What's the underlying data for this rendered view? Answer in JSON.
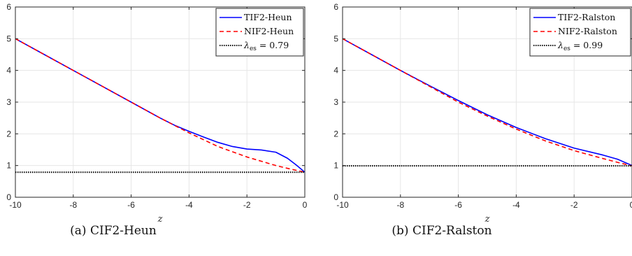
{
  "chart_data": [
    {
      "type": "line",
      "caption": "(a)  CIF2-Heun",
      "xlabel": "z",
      "ylabel": "",
      "xlim": [
        -10,
        0
      ],
      "ylim": [
        0,
        6
      ],
      "x_ticks": [
        -10,
        -8,
        -6,
        -4,
        -2,
        0
      ],
      "x_tick_labels": [
        "-10",
        "-8",
        "-6",
        "-4",
        "-2",
        "0"
      ],
      "y_ticks": [
        0,
        1,
        2,
        3,
        4,
        5,
        6
      ],
      "y_tick_labels": [
        "0",
        "1",
        "2",
        "3",
        "4",
        "5",
        "6"
      ],
      "grid": true,
      "legend_position": "top-right",
      "series": [
        {
          "name": "TIF2-Heun",
          "style": "solid",
          "color": "#0000ff",
          "x": [
            -10,
            -9,
            -8,
            -7,
            -6,
            -5,
            -4.5,
            -4,
            -3.5,
            -3,
            -2.5,
            -2,
            -1.5,
            -1,
            -0.6,
            -0.3,
            0
          ],
          "y": [
            5,
            4.5,
            4,
            3.5,
            3,
            2.5,
            2.27,
            2.08,
            1.9,
            1.73,
            1.6,
            1.52,
            1.49,
            1.42,
            1.23,
            1.02,
            0.79
          ]
        },
        {
          "name": "NIF2-Heun",
          "style": "dashed",
          "color": "#ff0000",
          "x": [
            -10,
            -9,
            -8,
            -7,
            -6,
            -5,
            -4,
            -3,
            -2,
            -1,
            -0.5,
            0
          ],
          "y": [
            5,
            4.5,
            4,
            3.5,
            3,
            2.5,
            2.03,
            1.6,
            1.27,
            1.0,
            0.89,
            0.79
          ]
        },
        {
          "name": "λes = 0.79",
          "style": "dotted",
          "color": "#000000",
          "x": [
            -10,
            0
          ],
          "y": [
            0.79,
            0.79
          ]
        }
      ],
      "legend_labels": [
        "TIF2-Heun",
        "NIF2-Heun",
        "= 0.79"
      ]
    },
    {
      "type": "line",
      "caption": "(b)  CIF2-Ralston",
      "xlabel": "z",
      "ylabel": "",
      "xlim": [
        -10,
        0
      ],
      "ylim": [
        0,
        6
      ],
      "x_ticks": [
        -10,
        -8,
        -6,
        -4,
        -2,
        0
      ],
      "x_tick_labels": [
        "-10",
        "-8",
        "-6",
        "-4",
        "-2",
        "0"
      ],
      "y_ticks": [
        0,
        1,
        2,
        3,
        4,
        5,
        6
      ],
      "y_tick_labels": [
        "0",
        "1",
        "2",
        "3",
        "4",
        "5",
        "6"
      ],
      "grid": true,
      "legend_position": "top-right",
      "series": [
        {
          "name": "TIF2-Ralston",
          "style": "solid",
          "color": "#0000ff",
          "x": [
            -10,
            -9,
            -8,
            -7,
            -6,
            -5,
            -4,
            -3,
            -2,
            -1,
            -0.5,
            0
          ],
          "y": [
            5,
            4.5,
            4,
            3.52,
            3.05,
            2.6,
            2.2,
            1.85,
            1.55,
            1.33,
            1.2,
            1.0
          ]
        },
        {
          "name": "NIF2-Ralston",
          "style": "dashed",
          "color": "#ff0000",
          "x": [
            -10,
            -9,
            -8,
            -7,
            -6,
            -5,
            -4,
            -3,
            -2,
            -1,
            -0.5,
            0
          ],
          "y": [
            5,
            4.5,
            4,
            3.5,
            3.0,
            2.56,
            2.15,
            1.78,
            1.47,
            1.22,
            1.1,
            0.99
          ]
        },
        {
          "name": "λes = 0.99",
          "style": "dotted",
          "color": "#000000",
          "x": [
            -10,
            0
          ],
          "y": [
            0.99,
            0.99
          ]
        }
      ],
      "legend_labels": [
        "TIF2-Ralston",
        "NIF2-Ralston",
        "= 0.99"
      ]
    }
  ]
}
